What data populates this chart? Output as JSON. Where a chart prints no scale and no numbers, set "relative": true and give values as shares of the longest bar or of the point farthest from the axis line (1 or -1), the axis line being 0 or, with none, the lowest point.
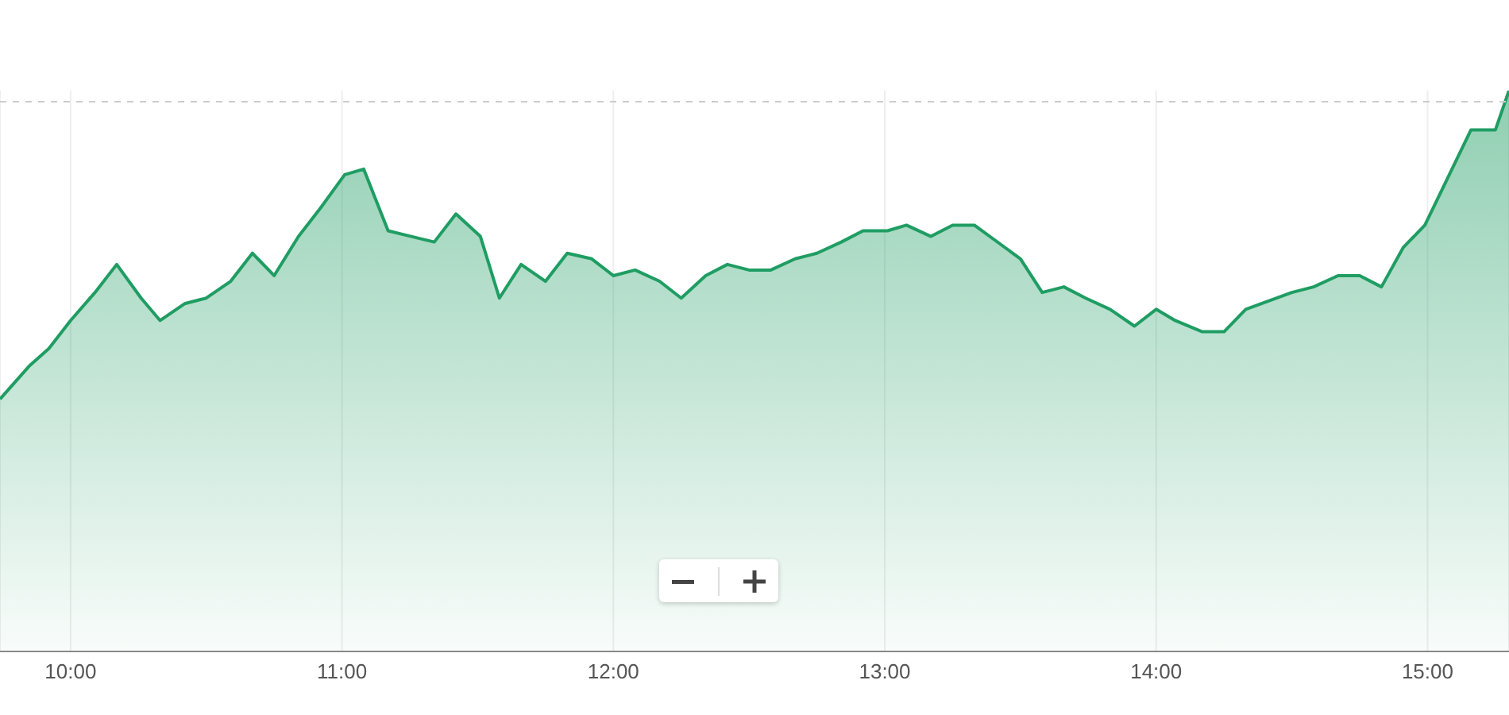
{
  "chart_data": {
    "type": "area",
    "relative": true,
    "grid": "x",
    "xlim": [
      9.74,
      15.3
    ],
    "xticks": [
      {
        "value": 10,
        "label": "10:00"
      },
      {
        "value": 11,
        "label": "11:00"
      },
      {
        "value": 12,
        "label": "12:00"
      },
      {
        "value": 13,
        "label": "13:00"
      },
      {
        "value": 14,
        "label": "14:00"
      },
      {
        "value": 15,
        "label": "15:00"
      }
    ],
    "x": [
      9.74,
      9.85,
      9.92,
      10.0,
      10.09,
      10.17,
      10.26,
      10.33,
      10.42,
      10.5,
      10.59,
      10.67,
      10.75,
      10.84,
      10.92,
      11.01,
      11.08,
      11.17,
      11.34,
      11.42,
      11.51,
      11.58,
      11.66,
      11.75,
      11.83,
      11.92,
      12.0,
      12.08,
      12.17,
      12.25,
      12.34,
      12.42,
      12.5,
      12.58,
      12.67,
      12.75,
      12.84,
      12.92,
      13.01,
      13.08,
      13.17,
      13.25,
      13.33,
      13.5,
      13.58,
      13.66,
      13.74,
      13.83,
      13.92,
      14.0,
      14.07,
      14.17,
      14.25,
      14.33,
      14.5,
      14.58,
      14.67,
      14.75,
      14.83,
      14.91,
      14.99,
      15.08,
      15.16,
      15.25,
      15.3
    ],
    "series": [
      {
        "color": "#1f9d63",
        "values": [
          0.45,
          0.51,
          0.54,
          0.59,
          0.64,
          0.69,
          0.63,
          0.59,
          0.62,
          0.63,
          0.66,
          0.71,
          0.67,
          0.74,
          0.79,
          0.85,
          0.86,
          0.75,
          0.73,
          0.78,
          0.74,
          0.63,
          0.69,
          0.66,
          0.71,
          0.7,
          0.67,
          0.68,
          0.66,
          0.63,
          0.67,
          0.69,
          0.68,
          0.68,
          0.7,
          0.71,
          0.73,
          0.75,
          0.75,
          0.76,
          0.74,
          0.76,
          0.76,
          0.7,
          0.64,
          0.65,
          0.63,
          0.61,
          0.58,
          0.61,
          0.59,
          0.57,
          0.57,
          0.61,
          0.64,
          0.65,
          0.67,
          0.67,
          0.65,
          0.72,
          0.76,
          0.85,
          0.93,
          0.93,
          1
        ]
      }
    ],
    "ref_lines": [
      {
        "axis": "y",
        "value": 0.98,
        "color": "#cccccc",
        "line_style": "dashed"
      }
    ]
  }
}
